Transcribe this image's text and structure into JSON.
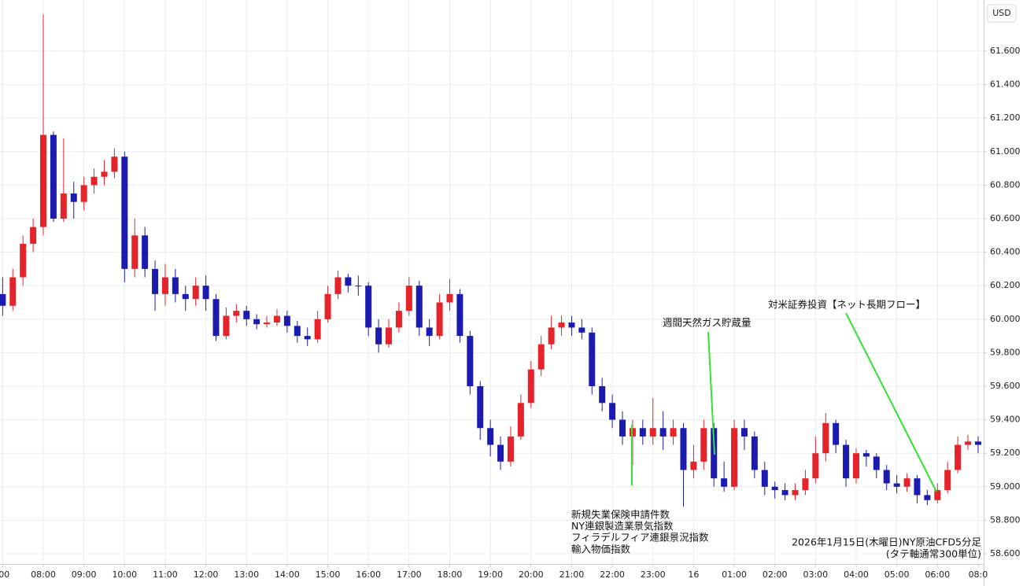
{
  "chart_data": {
    "type": "candlestick",
    "currency": "USD",
    "up_color": "#e4232b",
    "down_color": "#1b1bb0",
    "grid": true,
    "xlim": [
      -0.065,
      24.137
    ],
    "ylim": [
      58.539,
      61.905
    ],
    "xticks": [
      {
        "value": 0,
        "label": ":00"
      },
      {
        "value": 1,
        "label": "08:00"
      },
      {
        "value": 2,
        "label": "09:00"
      },
      {
        "value": 3,
        "label": "10:00"
      },
      {
        "value": 4,
        "label": "11:00"
      },
      {
        "value": 5,
        "label": "12:00"
      },
      {
        "value": 6,
        "label": "13:00"
      },
      {
        "value": 7,
        "label": "14:00"
      },
      {
        "value": 8,
        "label": "15:00"
      },
      {
        "value": 9,
        "label": "16:00"
      },
      {
        "value": 10,
        "label": "17:00"
      },
      {
        "value": 11,
        "label": "18:00"
      },
      {
        "value": 12,
        "label": "19:00"
      },
      {
        "value": 13,
        "label": "20:00"
      },
      {
        "value": 14,
        "label": "21:00"
      },
      {
        "value": 15,
        "label": "22:00"
      },
      {
        "value": 16,
        "label": "23:00"
      },
      {
        "value": 17,
        "label": "16"
      },
      {
        "value": 18,
        "label": "01:00"
      },
      {
        "value": 19,
        "label": "02:00"
      },
      {
        "value": 20,
        "label": "03:00"
      },
      {
        "value": 21,
        "label": "04:00"
      },
      {
        "value": 22,
        "label": "05:00"
      },
      {
        "value": 23,
        "label": "06:00"
      },
      {
        "value": 24,
        "label": "08:0"
      }
    ],
    "yticks": [
      {
        "value": 58.6,
        "label": "58.600"
      },
      {
        "value": 58.8,
        "label": "58.800"
      },
      {
        "value": 59.0,
        "label": "59.000"
      },
      {
        "value": 59.2,
        "label": "59.200"
      },
      {
        "value": 59.4,
        "label": "59.400"
      },
      {
        "value": 59.6,
        "label": "59.600"
      },
      {
        "value": 59.8,
        "label": "59.800"
      },
      {
        "value": 60.0,
        "label": "60.000"
      },
      {
        "value": 60.2,
        "label": "60.200"
      },
      {
        "value": 60.4,
        "label": "60.400"
      },
      {
        "value": 60.6,
        "label": "60.600"
      },
      {
        "value": 60.8,
        "label": "60.800"
      },
      {
        "value": 61.0,
        "label": "61.000"
      },
      {
        "value": 61.2,
        "label": "61.200"
      },
      {
        "value": 61.4,
        "label": "61.400"
      },
      {
        "value": 61.6,
        "label": "61.600"
      }
    ],
    "x": [
      0,
      0.25,
      0.5,
      0.75,
      1,
      1.25,
      1.5,
      1.75,
      2,
      2.25,
      2.5,
      2.75,
      3,
      3.25,
      3.5,
      3.75,
      4,
      4.25,
      4.5,
      4.75,
      5,
      5.25,
      5.5,
      5.75,
      6,
      6.25,
      6.5,
      6.75,
      7,
      7.25,
      7.5,
      7.75,
      8,
      8.25,
      8.5,
      8.75,
      9,
      9.25,
      9.5,
      9.75,
      10,
      10.25,
      10.5,
      10.75,
      11,
      11.25,
      11.5,
      11.75,
      12,
      12.25,
      12.5,
      12.75,
      13,
      13.25,
      13.5,
      13.75,
      14,
      14.25,
      14.5,
      14.75,
      15,
      15.25,
      15.5,
      15.75,
      16,
      16.25,
      16.5,
      16.75,
      17,
      17.25,
      17.5,
      17.75,
      18,
      18.25,
      18.5,
      18.75,
      19,
      19.25,
      19.5,
      19.75,
      20,
      20.25,
      20.5,
      20.75,
      21,
      21.25,
      21.5,
      21.75,
      22,
      22.25,
      22.5,
      22.75,
      23,
      23.25,
      23.5,
      23.75,
      24
    ],
    "open": [
      60.15,
      60.08,
      60.25,
      60.45,
      60.55,
      61.1,
      60.6,
      60.75,
      60.7,
      60.8,
      60.85,
      60.88,
      60.97,
      60.3,
      60.5,
      60.3,
      60.15,
      60.25,
      60.15,
      60.12,
      60.2,
      60.12,
      59.9,
      60.02,
      60.05,
      60.0,
      59.97,
      59.98,
      60.02,
      59.96,
      59.9,
      59.88,
      60.0,
      60.15,
      60.25,
      60.2,
      60.2,
      59.95,
      59.85,
      59.95,
      60.05,
      60.2,
      59.95,
      59.9,
      60.1,
      60.15,
      59.9,
      59.6,
      59.35,
      59.25,
      59.15,
      59.3,
      59.5,
      59.7,
      59.85,
      59.95,
      59.98,
      59.95,
      59.92,
      59.6,
      59.5,
      59.4,
      59.3,
      59.35,
      59.3,
      59.35,
      59.3,
      59.35,
      59.1,
      59.15,
      59.35,
      59.05,
      59.0,
      59.35,
      59.3,
      59.1,
      59.0,
      58.98,
      58.95,
      58.98,
      59.05,
      59.2,
      59.38,
      59.25,
      59.05,
      59.2,
      59.18,
      59.1,
      59.02,
      59.0,
      59.05,
      58.95,
      58.92,
      58.98,
      59.1,
      59.25,
      59.27
    ],
    "high": [
      60.25,
      60.3,
      60.5,
      60.6,
      61.82,
      61.12,
      61.08,
      60.82,
      60.85,
      60.9,
      60.95,
      61.02,
      61.0,
      60.6,
      60.55,
      60.35,
      60.33,
      60.3,
      60.2,
      60.25,
      60.26,
      60.15,
      60.07,
      60.09,
      60.08,
      60.03,
      60.02,
      60.06,
      60.05,
      59.99,
      59.95,
      60.05,
      60.2,
      60.29,
      60.27,
      60.26,
      60.22,
      60.0,
      60.0,
      60.1,
      60.25,
      60.23,
      60.0,
      60.15,
      60.24,
      60.18,
      59.93,
      59.63,
      59.4,
      59.3,
      59.36,
      59.55,
      59.75,
      59.9,
      60.02,
      60.02,
      60.02,
      60.0,
      59.95,
      59.65,
      59.55,
      59.45,
      59.4,
      59.4,
      59.53,
      59.45,
      59.4,
      59.38,
      59.25,
      59.4,
      59.38,
      59.15,
      59.4,
      59.4,
      59.33,
      59.15,
      59.03,
      59.02,
      59.02,
      59.1,
      59.3,
      59.44,
      59.4,
      59.28,
      59.23,
      59.22,
      59.2,
      59.13,
      59.07,
      59.08,
      59.07,
      58.98,
      59.02,
      59.15,
      59.3,
      59.31,
      59.3
    ],
    "low": [
      60.02,
      60.05,
      60.2,
      60.4,
      60.5,
      60.58,
      60.58,
      60.6,
      60.65,
      60.75,
      60.8,
      60.84,
      60.22,
      60.25,
      60.25,
      60.05,
      60.08,
      60.1,
      60.05,
      60.08,
      60.05,
      59.87,
      59.88,
      59.98,
      59.96,
      59.94,
      59.95,
      59.96,
      59.92,
      59.86,
      59.84,
      59.86,
      59.98,
      60.12,
      60.16,
      60.14,
      59.9,
      59.8,
      59.83,
      59.92,
      60.02,
      59.9,
      59.84,
      59.88,
      60.05,
      59.86,
      59.55,
      59.28,
      59.18,
      59.1,
      59.12,
      59.28,
      59.47,
      59.66,
      59.82,
      59.9,
      59.9,
      59.88,
      59.55,
      59.45,
      59.35,
      59.25,
      59.13,
      59.25,
      59.25,
      59.22,
      59.25,
      58.88,
      59.05,
      59.1,
      59.0,
      58.97,
      58.98,
      59.22,
      59.05,
      58.95,
      58.93,
      58.92,
      58.92,
      58.95,
      59.02,
      59.15,
      59.2,
      59.0,
      59.02,
      59.12,
      59.05,
      58.98,
      58.96,
      58.97,
      58.9,
      58.89,
      58.9,
      58.96,
      59.08,
      59.22,
      59.2
    ],
    "close": [
      60.08,
      60.25,
      60.45,
      60.55,
      61.1,
      60.6,
      60.75,
      60.7,
      60.8,
      60.85,
      60.88,
      60.97,
      60.3,
      60.5,
      60.3,
      60.15,
      60.25,
      60.15,
      60.12,
      60.2,
      60.12,
      59.9,
      60.02,
      60.05,
      60.0,
      59.97,
      59.98,
      60.02,
      59.96,
      59.9,
      59.88,
      60.0,
      60.15,
      60.25,
      60.2,
      60.2,
      59.95,
      59.85,
      59.95,
      60.05,
      60.2,
      59.95,
      59.9,
      60.1,
      60.15,
      59.9,
      59.6,
      59.35,
      59.25,
      59.15,
      59.3,
      59.5,
      59.7,
      59.85,
      59.95,
      59.98,
      59.95,
      59.92,
      59.6,
      59.5,
      59.4,
      59.3,
      59.35,
      59.3,
      59.35,
      59.3,
      59.35,
      59.1,
      59.15,
      59.35,
      59.05,
      59.0,
      59.35,
      59.3,
      59.1,
      59.0,
      58.98,
      58.95,
      58.98,
      59.05,
      59.2,
      59.38,
      59.25,
      59.05,
      59.2,
      59.18,
      59.1,
      59.02,
      59.0,
      59.05,
      58.95,
      58.92,
      58.98,
      59.1,
      59.25,
      59.27,
      59.25
    ],
    "annotation_color": "#33e033",
    "annotations": [
      {
        "lines": [
          "新規失業保険申請件数",
          "NY連銀製造業景気指数",
          "フィラデルフィア連銀景況指数",
          "輸入物価指数"
        ]
      },
      {
        "lines": [
          "週間天然ガス貯蔵量"
        ]
      },
      {
        "lines": [
          "対米証券投資【ネット長期フロー】"
        ]
      }
    ],
    "footnote": [
      "2026年1月15日(木曜日)NY原油CFD5分足",
      "(タテ軸通常300単位)"
    ]
  }
}
